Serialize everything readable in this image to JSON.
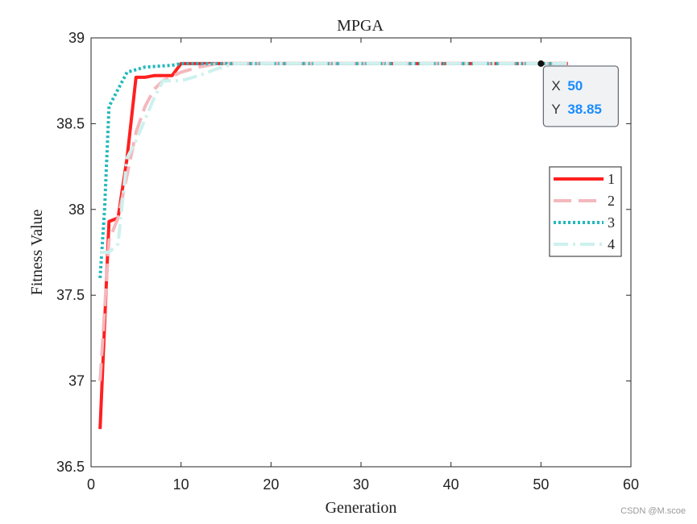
{
  "chart_data": {
    "type": "line",
    "title": "MPGA",
    "xlabel": "Generation",
    "ylabel": "Fitness Value",
    "xlim": [
      0,
      60
    ],
    "ylim": [
      36.5,
      39
    ],
    "xticks": [
      0,
      10,
      20,
      30,
      40,
      50,
      60
    ],
    "yticks": [
      36.5,
      37,
      37.5,
      38,
      38.5,
      39
    ],
    "xtick_labels": [
      "0",
      "10",
      "20",
      "30",
      "40",
      "50",
      "60"
    ],
    "ytick_labels": [
      "36.5",
      "37",
      "37.5",
      "38",
      "38.5",
      "39"
    ],
    "grid": false,
    "legend_position": "right",
    "series": [
      {
        "name": "1",
        "color": "#ff2020",
        "style": "solid",
        "points": [
          [
            1,
            36.72
          ],
          [
            2,
            37.93
          ],
          [
            3,
            37.95
          ],
          [
            4,
            38.3
          ],
          [
            5,
            38.77
          ],
          [
            6,
            38.77
          ],
          [
            7,
            38.78
          ],
          [
            9,
            38.78
          ],
          [
            10,
            38.85
          ],
          [
            53,
            38.85
          ]
        ]
      },
      {
        "name": "2",
        "color": "#f4b8bd",
        "style": "dashed",
        "points": [
          [
            1,
            37.0
          ],
          [
            2,
            37.82
          ],
          [
            3,
            37.95
          ],
          [
            4,
            38.2
          ],
          [
            5,
            38.45
          ],
          [
            6,
            38.6
          ],
          [
            7,
            38.7
          ],
          [
            8,
            38.75
          ],
          [
            10,
            38.8
          ],
          [
            12,
            38.83
          ],
          [
            14,
            38.85
          ],
          [
            53,
            38.85
          ]
        ]
      },
      {
        "name": "3",
        "color": "#22b8bc",
        "style": "dotted",
        "points": [
          [
            1,
            37.6
          ],
          [
            1.5,
            38.0
          ],
          [
            2,
            38.6
          ],
          [
            3,
            38.7
          ],
          [
            4,
            38.8
          ],
          [
            6,
            38.83
          ],
          [
            9,
            38.84
          ],
          [
            10,
            38.85
          ],
          [
            53,
            38.85
          ]
        ]
      },
      {
        "name": "4",
        "color": "#cdf1ee",
        "style": "dashdot",
        "points": [
          [
            1,
            37.75
          ],
          [
            2,
            37.75
          ],
          [
            3,
            37.8
          ],
          [
            4,
            38.3
          ],
          [
            5,
            38.4
          ],
          [
            7,
            38.65
          ],
          [
            8,
            38.75
          ],
          [
            10,
            38.75
          ],
          [
            12,
            38.78
          ],
          [
            14,
            38.82
          ],
          [
            16,
            38.85
          ],
          [
            53,
            38.85
          ]
        ]
      }
    ],
    "datatip": {
      "x_label": "X",
      "x_value": "50",
      "y_label": "Y",
      "y_value": "38.85",
      "x": 50,
      "y": 38.85,
      "value_color": "#1a8cff"
    }
  },
  "watermark": "CSDN @M.scoe"
}
